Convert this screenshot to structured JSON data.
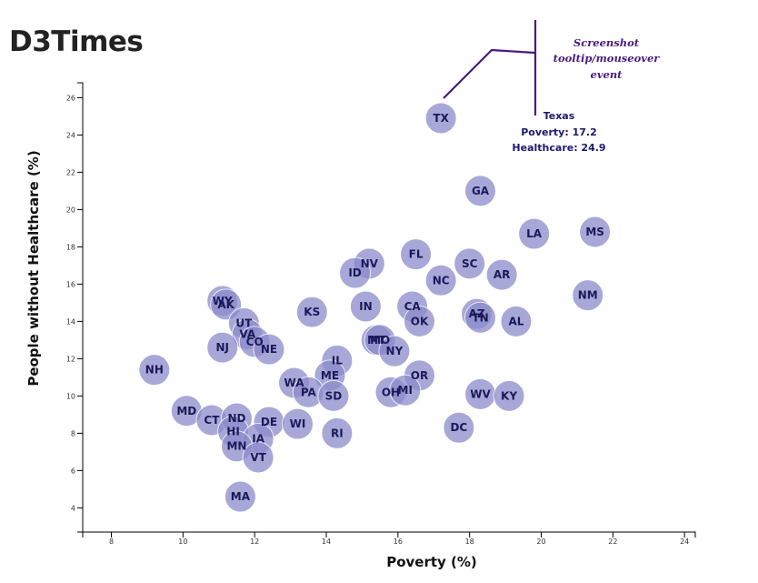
{
  "app": {
    "title": "D3Times"
  },
  "chart_data": {
    "type": "scatter",
    "title": "",
    "xlabel": "Poverty (%)",
    "ylabel": "People without Healthcare (%)",
    "xlim": [
      7.2,
      24.3
    ],
    "ylim": [
      2.7,
      26.8
    ],
    "xticks": [
      8,
      10,
      12,
      14,
      16,
      18,
      20,
      22,
      24
    ],
    "yticks": [
      4,
      6,
      8,
      10,
      12,
      14,
      16,
      18,
      20,
      22,
      24,
      26
    ],
    "grid": false,
    "marker_color": "#8B8BCC",
    "label_color": "#1a1a5a",
    "points": [
      {
        "label": "TX",
        "x": 17.2,
        "y": 24.9
      },
      {
        "label": "GA",
        "x": 18.3,
        "y": 21.0
      },
      {
        "label": "LA",
        "x": 19.8,
        "y": 18.7
      },
      {
        "label": "MS",
        "x": 21.5,
        "y": 18.8
      },
      {
        "label": "FL",
        "x": 16.5,
        "y": 17.6
      },
      {
        "label": "NV",
        "x": 15.2,
        "y": 17.1
      },
      {
        "label": "SC",
        "x": 18.0,
        "y": 17.1
      },
      {
        "label": "ID",
        "x": 14.8,
        "y": 16.6
      },
      {
        "label": "AR",
        "x": 18.9,
        "y": 16.5
      },
      {
        "label": "NC",
        "x": 17.2,
        "y": 16.2
      },
      {
        "label": "NM",
        "x": 21.3,
        "y": 15.4
      },
      {
        "label": "WY",
        "x": 11.1,
        "y": 15.1
      },
      {
        "label": "AK",
        "x": 11.2,
        "y": 14.9
      },
      {
        "label": "IN",
        "x": 15.1,
        "y": 14.8
      },
      {
        "label": "CA",
        "x": 16.4,
        "y": 14.8
      },
      {
        "label": "KS",
        "x": 13.6,
        "y": 14.5
      },
      {
        "label": "AZ",
        "x": 18.2,
        "y": 14.4
      },
      {
        "label": "TN",
        "x": 18.3,
        "y": 14.2
      },
      {
        "label": "OK",
        "x": 16.6,
        "y": 14.0
      },
      {
        "label": "AL",
        "x": 19.3,
        "y": 14.0
      },
      {
        "label": "UT",
        "x": 11.7,
        "y": 13.9
      },
      {
        "label": "VA",
        "x": 11.8,
        "y": 13.3
      },
      {
        "label": "CO",
        "x": 12.0,
        "y": 12.9
      },
      {
        "label": "MT",
        "x": 15.4,
        "y": 13.0
      },
      {
        "label": "MO",
        "x": 15.5,
        "y": 13.0
      },
      {
        "label": "NJ",
        "x": 11.1,
        "y": 12.6
      },
      {
        "label": "NE",
        "x": 12.4,
        "y": 12.5
      },
      {
        "label": "NY",
        "x": 15.9,
        "y": 12.4
      },
      {
        "label": "IL",
        "x": 14.3,
        "y": 11.9
      },
      {
        "label": "NH",
        "x": 9.2,
        "y": 11.4
      },
      {
        "label": "ME",
        "x": 14.1,
        "y": 11.1
      },
      {
        "label": "OR",
        "x": 16.6,
        "y": 11.1
      },
      {
        "label": "WA",
        "x": 13.1,
        "y": 10.7
      },
      {
        "label": "PA",
        "x": 13.5,
        "y": 10.2
      },
      {
        "label": "OH",
        "x": 15.8,
        "y": 10.2
      },
      {
        "label": "MI",
        "x": 16.2,
        "y": 10.3
      },
      {
        "label": "SD",
        "x": 14.2,
        "y": 10.0
      },
      {
        "label": "WV",
        "x": 18.3,
        "y": 10.1
      },
      {
        "label": "KY",
        "x": 19.1,
        "y": 10.0
      },
      {
        "label": "MD",
        "x": 10.1,
        "y": 9.2
      },
      {
        "label": "CT",
        "x": 10.8,
        "y": 8.7
      },
      {
        "label": "ND",
        "x": 11.5,
        "y": 8.8
      },
      {
        "label": "DE",
        "x": 12.4,
        "y": 8.6
      },
      {
        "label": "WI",
        "x": 13.2,
        "y": 8.5
      },
      {
        "label": "HI",
        "x": 11.4,
        "y": 8.1
      },
      {
        "label": "RI",
        "x": 14.3,
        "y": 8.0
      },
      {
        "label": "DC",
        "x": 17.7,
        "y": 8.3
      },
      {
        "label": "IA",
        "x": 12.1,
        "y": 7.7
      },
      {
        "label": "MN",
        "x": 11.5,
        "y": 7.3
      },
      {
        "label": "VT",
        "x": 12.1,
        "y": 6.7
      },
      {
        "label": "MA",
        "x": 11.6,
        "y": 4.6
      }
    ]
  },
  "annotation": {
    "lines": [
      "Screenshot",
      "tooltip/mouseover",
      "event"
    ],
    "color": "#4a1a80"
  },
  "tooltip": {
    "state": "Texas",
    "poverty": "Poverty: 17.2",
    "healthcare": "Healthcare: 24.9"
  }
}
